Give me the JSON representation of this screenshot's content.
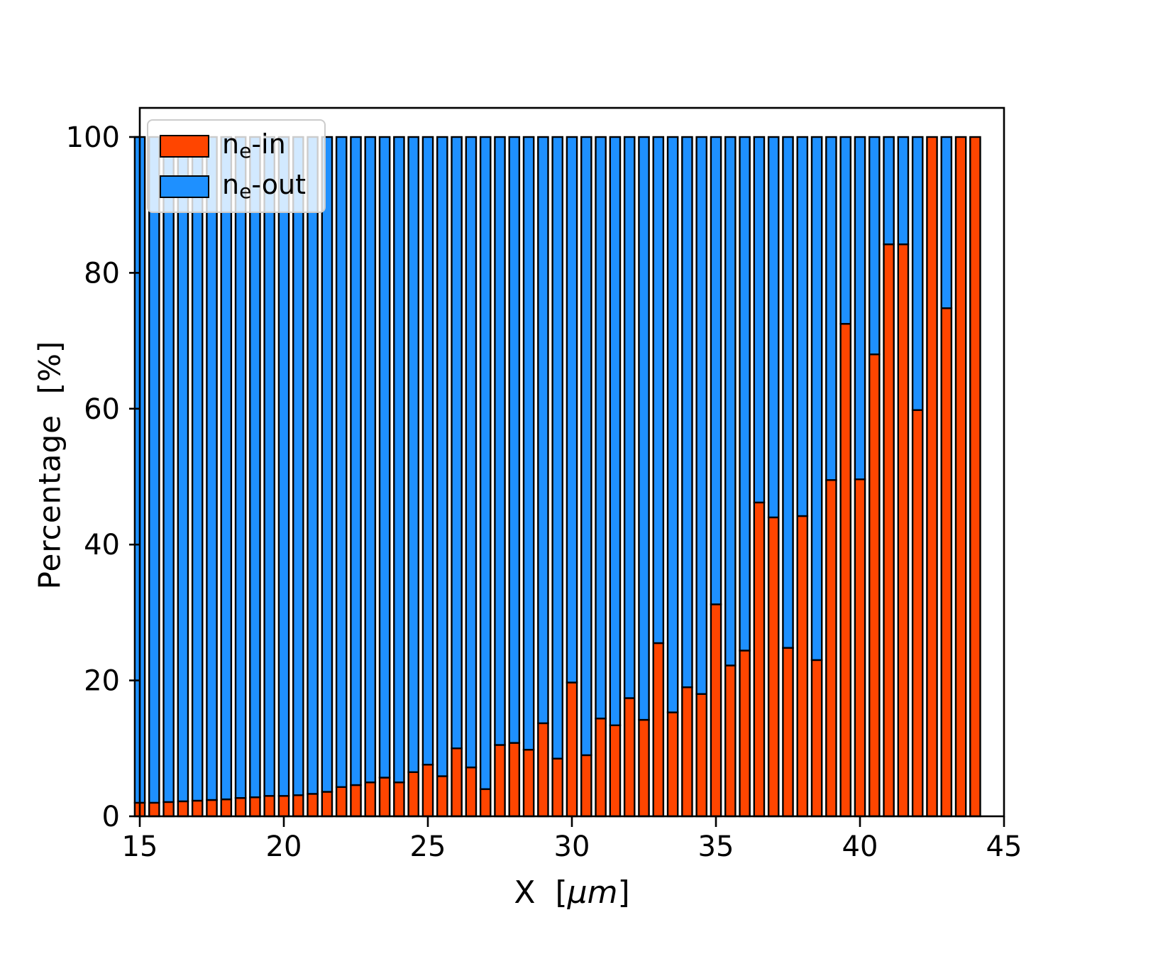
{
  "figure": {
    "background": "#ffffff",
    "plot_background": "#ffffff"
  },
  "chart_data": {
    "type": "bar",
    "stacked": true,
    "orientation": "vertical",
    "title": "",
    "xlabel_prefix": "X  [",
    "xlabel_italic": "μm",
    "xlabel_suffix": "]",
    "ylabel": "Percentage  [%]",
    "xlim": [
      15,
      45
    ],
    "ylim": [
      0,
      104.3
    ],
    "xticks": [
      15,
      20,
      25,
      30,
      35,
      40,
      45
    ],
    "x_tick_labels": [
      "15",
      "20",
      "25",
      "30",
      "35",
      "40",
      "45"
    ],
    "yticks": [
      0,
      20,
      40,
      60,
      80,
      100
    ],
    "y_tick_labels": [
      "0",
      "20",
      "40",
      "60",
      "80",
      "100"
    ],
    "grid": false,
    "bar_width": 0.35,
    "edge_color": "#000000",
    "legend_position": "upper left",
    "x": [
      15.0,
      15.5,
      16.0,
      16.5,
      17.0,
      17.5,
      18.0,
      18.5,
      19.0,
      19.5,
      20.0,
      20.5,
      21.0,
      21.5,
      22.0,
      22.5,
      23.0,
      23.5,
      24.0,
      24.5,
      25.0,
      25.5,
      26.0,
      26.5,
      27.0,
      27.5,
      28.0,
      28.5,
      29.0,
      29.5,
      30.0,
      30.5,
      31.0,
      31.5,
      32.0,
      32.5,
      33.0,
      33.5,
      34.0,
      34.5,
      35.0,
      35.5,
      36.0,
      36.5,
      37.0,
      37.5,
      38.0,
      38.5,
      39.0,
      39.5,
      40.0,
      40.5,
      41.0,
      41.5,
      42.0,
      42.5,
      43.0,
      43.5,
      44.0
    ],
    "series": [
      {
        "name": "ne-in",
        "label_base": "n",
        "label_sub": "e",
        "label_suffix": "-in",
        "color": "#ff4500",
        "values": [
          2.0,
          2.0,
          2.1,
          2.2,
          2.3,
          2.4,
          2.5,
          2.7,
          2.8,
          3.0,
          3.0,
          3.1,
          3.3,
          3.6,
          4.3,
          4.6,
          5.0,
          5.7,
          5.0,
          6.5,
          7.6,
          5.9,
          10.0,
          7.2,
          4.0,
          10.5,
          10.8,
          9.8,
          13.7,
          8.5,
          19.7,
          9.0,
          14.4,
          13.4,
          17.4,
          14.2,
          25.5,
          15.3,
          19.0,
          18.0,
          31.2,
          22.2,
          24.4,
          46.2,
          44.0,
          24.8,
          44.2,
          23.0,
          49.5,
          72.5,
          49.6,
          68.0,
          84.2,
          84.2,
          59.8,
          100.0,
          74.8,
          100.0,
          100.0
        ]
      },
      {
        "name": "ne-out",
        "label_base": "n",
        "label_sub": "e",
        "label_suffix": "-out",
        "color": "#1e90ff",
        "values": [
          98.0,
          98.0,
          97.9,
          97.8,
          97.7,
          97.6,
          97.5,
          97.3,
          97.2,
          97.0,
          97.0,
          96.9,
          96.7,
          96.4,
          95.7,
          95.4,
          95.0,
          94.3,
          95.0,
          93.5,
          92.4,
          94.1,
          90.0,
          92.8,
          96.0,
          89.5,
          89.2,
          90.2,
          86.3,
          91.5,
          80.3,
          91.0,
          85.6,
          86.6,
          82.6,
          85.8,
          74.5,
          84.7,
          81.0,
          82.0,
          68.8,
          77.8,
          75.6,
          53.8,
          56.0,
          75.2,
          55.8,
          77.0,
          50.5,
          27.5,
          50.4,
          32.0,
          15.8,
          15.8,
          40.2,
          0.0,
          25.2,
          0.0,
          0.0
        ]
      }
    ]
  }
}
